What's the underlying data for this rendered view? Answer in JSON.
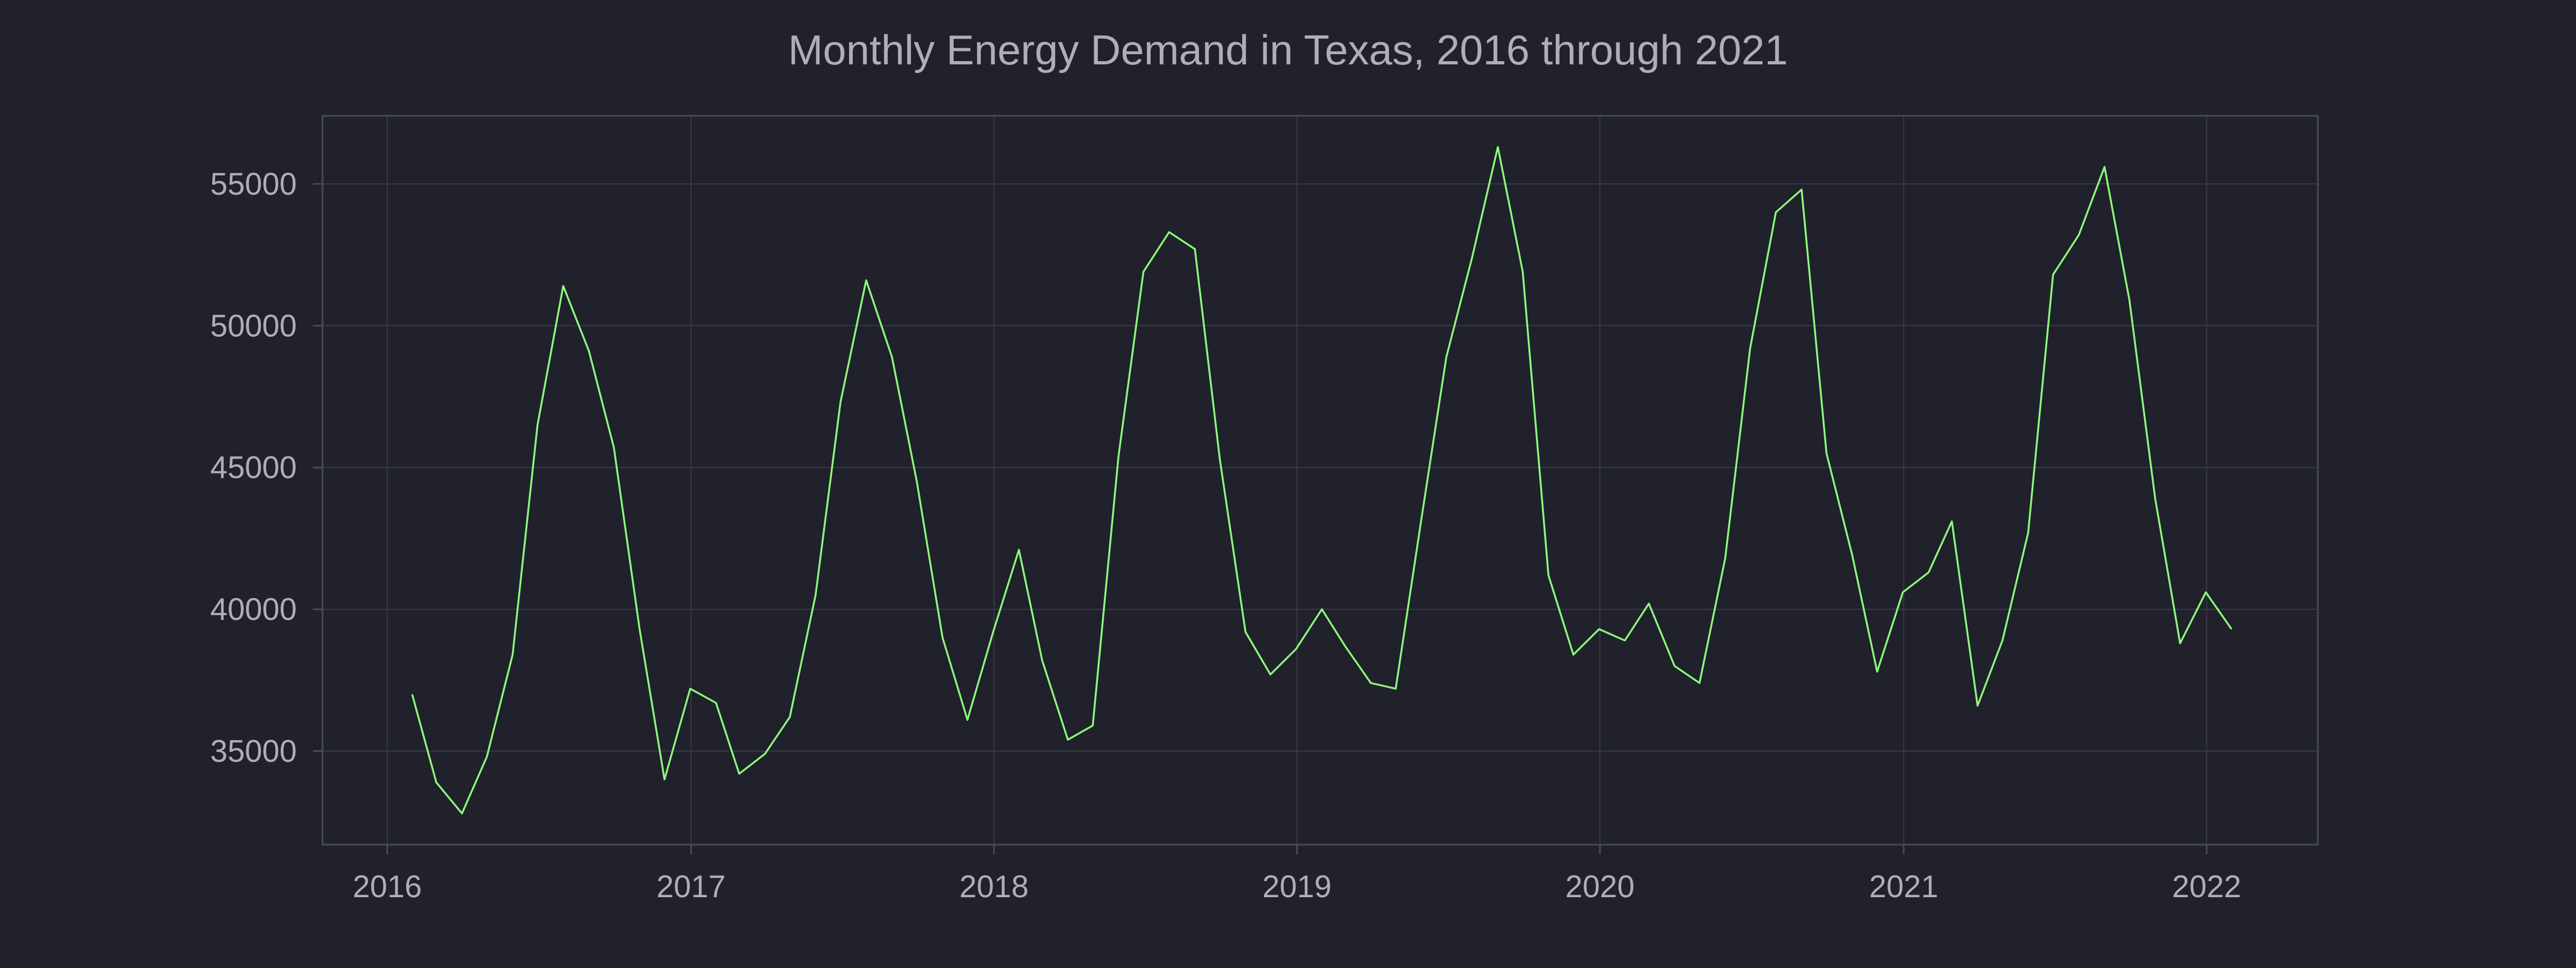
{
  "colors": {
    "background": "#20212b",
    "plot_background": "#20212b",
    "grid": "#393a47",
    "frame": "#4a4b5a",
    "text": "#aeaeb6",
    "line": "#8dfa7c"
  },
  "chart_data": {
    "type": "line",
    "title": "Monthly Energy Demand in Texas, 2016 through 2021",
    "xlabel": "",
    "ylabel": "",
    "grid": true,
    "legend": "none",
    "xlim": [
      "2015-10-15",
      "2022-05-15"
    ],
    "ylim": [
      31700,
      57400
    ],
    "x_ticks": [
      {
        "value": "2016-01-01",
        "label": "2016"
      },
      {
        "value": "2017-01-01",
        "label": "2017"
      },
      {
        "value": "2018-01-01",
        "label": "2018"
      },
      {
        "value": "2019-01-01",
        "label": "2019"
      },
      {
        "value": "2020-01-01",
        "label": "2020"
      },
      {
        "value": "2021-01-01",
        "label": "2021"
      },
      {
        "value": "2022-01-01",
        "label": "2022"
      }
    ],
    "y_ticks": [
      {
        "value": 35000,
        "label": "35000"
      },
      {
        "value": 40000,
        "label": "40000"
      },
      {
        "value": 45000,
        "label": "45000"
      },
      {
        "value": 50000,
        "label": "50000"
      },
      {
        "value": 55000,
        "label": "55000"
      }
    ],
    "series": [
      {
        "x": [
          "2016-01-31",
          "2016-02-29",
          "2016-03-31",
          "2016-04-30",
          "2016-05-31",
          "2016-06-30",
          "2016-07-31",
          "2016-08-31",
          "2016-09-30",
          "2016-10-31",
          "2016-11-30",
          "2016-12-31",
          "2017-01-31",
          "2017-02-28",
          "2017-03-31",
          "2017-04-30",
          "2017-05-31",
          "2017-06-30",
          "2017-07-31",
          "2017-08-31",
          "2017-09-30",
          "2017-10-31",
          "2017-11-30",
          "2017-12-31",
          "2018-01-31",
          "2018-02-28",
          "2018-03-31",
          "2018-04-30",
          "2018-05-31",
          "2018-06-30",
          "2018-07-31",
          "2018-08-31",
          "2018-09-30",
          "2018-10-31",
          "2018-11-30",
          "2018-12-31",
          "2019-01-31",
          "2019-02-28",
          "2019-03-31",
          "2019-04-30",
          "2019-05-31",
          "2019-06-30",
          "2019-07-31",
          "2019-08-31",
          "2019-09-30",
          "2019-10-31",
          "2019-11-30",
          "2019-12-31",
          "2020-01-31",
          "2020-02-29",
          "2020-03-31",
          "2020-04-30",
          "2020-05-31",
          "2020-06-30",
          "2020-07-31",
          "2020-08-31",
          "2020-09-30",
          "2020-10-31",
          "2020-11-30",
          "2020-12-31",
          "2021-01-31",
          "2021-02-28",
          "2021-03-31",
          "2021-04-30",
          "2021-05-31",
          "2021-06-30",
          "2021-07-31",
          "2021-08-31",
          "2021-09-30",
          "2021-10-31",
          "2021-11-30",
          "2021-12-31",
          "2022-01-31"
        ],
        "values": [
          37000,
          33900,
          32800,
          34800,
          38400,
          46500,
          51400,
          49100,
          45700,
          39300,
          34000,
          37200,
          36700,
          34200,
          34900,
          36200,
          40500,
          47300,
          51600,
          48900,
          44500,
          39000,
          36100,
          39200,
          42100,
          38200,
          35400,
          35900,
          45400,
          51900,
          53300,
          52700,
          45300,
          39200,
          37700,
          38600,
          40000,
          38700,
          37400,
          37200,
          43200,
          48900,
          52400,
          56300,
          51900,
          41200,
          38400,
          39300,
          38900,
          40200,
          38000,
          37400,
          41800,
          49200,
          54000,
          54800,
          45500,
          41900,
          37800,
          40600,
          41300,
          43100,
          36600,
          38900,
          42700,
          51800,
          53200,
          55600,
          50900,
          43900,
          38800,
          40600,
          39300
        ]
      }
    ]
  }
}
